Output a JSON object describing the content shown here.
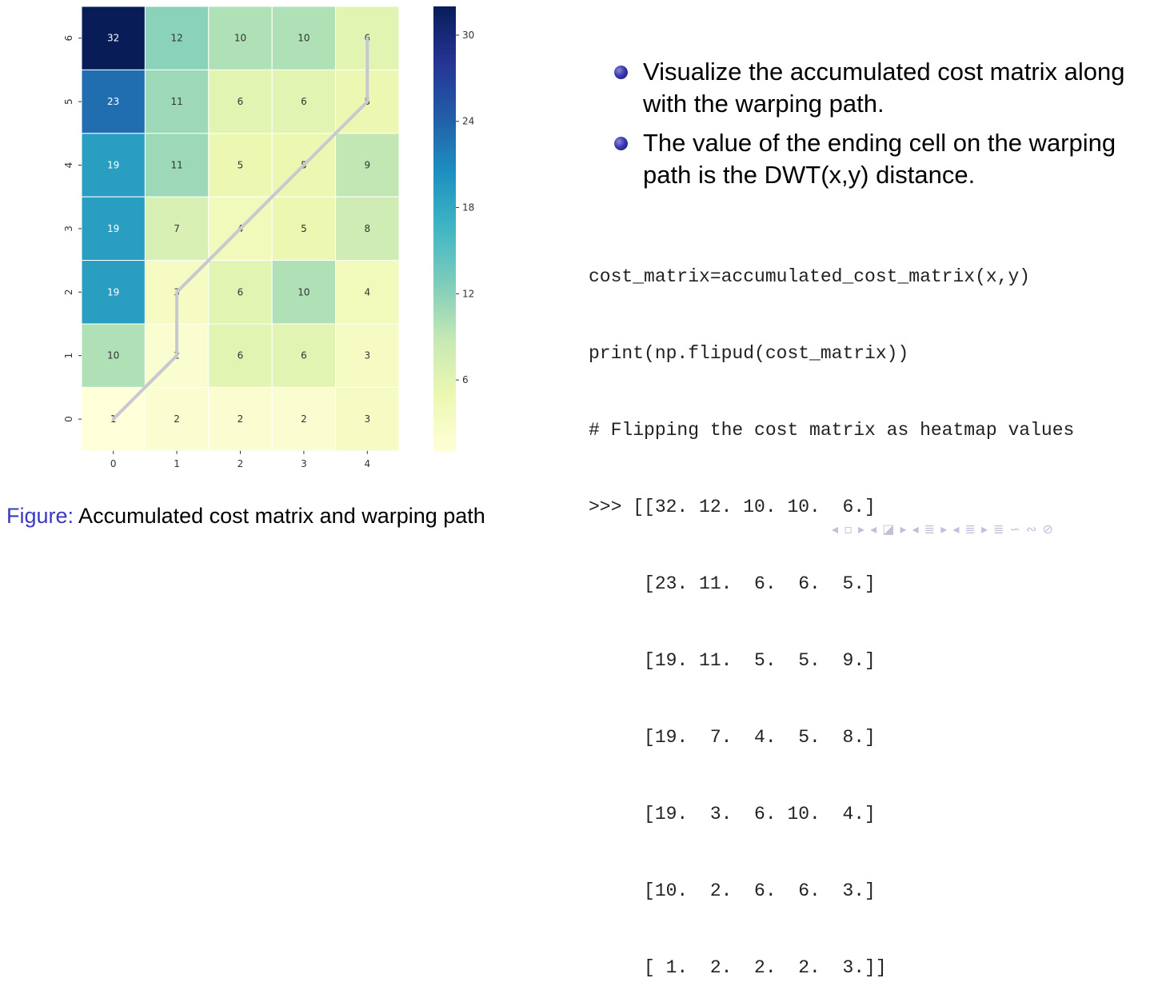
{
  "chart_data": {
    "type": "heatmap",
    "x_categories": [
      "0",
      "1",
      "2",
      "3",
      "4"
    ],
    "y_categories": [
      "0",
      "1",
      "2",
      "3",
      "4",
      "5",
      "6"
    ],
    "values_top_to_bottom": [
      [
        32,
        12,
        10,
        10,
        6
      ],
      [
        23,
        11,
        6,
        6,
        5
      ],
      [
        19,
        11,
        5,
        5,
        9
      ],
      [
        19,
        7,
        4,
        5,
        8
      ],
      [
        19,
        3,
        6,
        10,
        4
      ],
      [
        10,
        2,
        6,
        6,
        3
      ],
      [
        1,
        2,
        2,
        2,
        3
      ]
    ],
    "colorbar": {
      "ticks": [
        6,
        12,
        18,
        24,
        30
      ],
      "min": 1,
      "max": 32,
      "colormap": "YlGnBu"
    },
    "warping_path": [
      [
        0,
        0
      ],
      [
        1,
        1
      ],
      [
        1,
        2
      ],
      [
        2,
        3
      ],
      [
        3,
        4
      ],
      [
        4,
        5
      ],
      [
        4,
        6
      ]
    ],
    "path_color": "#c8c8d0"
  },
  "bullets": [
    "Visualize the accumulated cost matrix along with the warping path.",
    "The value of the ending cell on the warping path is the DWT(x,y) distance."
  ],
  "code_lines": [
    "cost_matrix=accumulated_cost_matrix(x,y)",
    "print(np.flipud(cost_matrix))",
    "# Flipping the cost matrix as heatmap values",
    ">>> [[32. 12. 10. 10.  6.]",
    "     [23. 11.  6.  6.  5.]",
    "     [19. 11.  5.  5.  9.]",
    "     [19.  7.  4.  5.  8.]",
    "     [19.  3.  6. 10.  4.]",
    "     [10.  2.  6.  6.  3.]",
    "     [ 1.  2.  2.  2.  3.]]"
  ],
  "caption": {
    "label": "Figure:",
    "text": " Accumulated cost matrix and warping path"
  },
  "nav_symbols": "◂ ▫ ▸ ◂ ◪ ▸ ◂ ≣ ▸ ◂ ≣ ▸   ≣   ∽ ∾ ⊘"
}
